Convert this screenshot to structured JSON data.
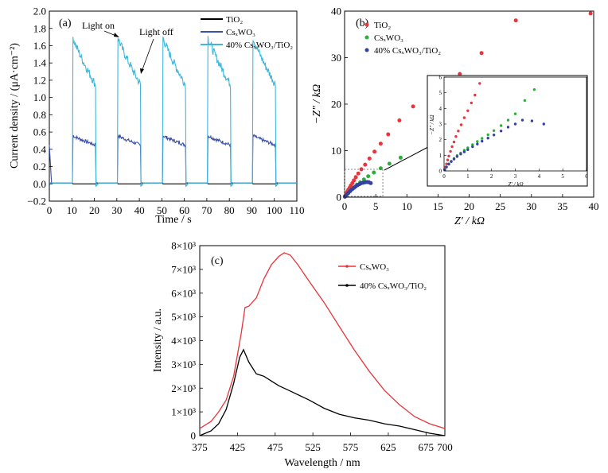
{
  "chart_data": [
    {
      "type": "line",
      "panel": "(a)",
      "xlabel": "Time / s",
      "ylabel": "Current density / (μA·cm⁻²)",
      "xlim": [
        0,
        110
      ],
      "ylim": [
        -0.2,
        2.0
      ],
      "xticks": [
        "0",
        "10",
        "20",
        "30",
        "40",
        "50",
        "60",
        "70",
        "80",
        "90",
        "100",
        "110"
      ],
      "yticks": [
        "−0.2",
        "0.0",
        "0.2",
        "0.4",
        "0.6",
        "0.8",
        "1.0",
        "1.2",
        "1.4",
        "1.6",
        "1.8",
        "2.0"
      ],
      "light_periods": [
        [
          10.5,
          20.5
        ],
        [
          30.5,
          40.5
        ],
        [
          50.5,
          60.5
        ],
        [
          70.5,
          80.5
        ],
        [
          90.5,
          100.5
        ]
      ],
      "series": [
        {
          "name": "TiO₂",
          "color": "#000000",
          "on_start": 0.0,
          "on_end": 0.0
        },
        {
          "name": "CsₓWO₃",
          "color": "#3b4fa6",
          "on_start": 0.56,
          "on_end": 0.45
        },
        {
          "name": "40% CsₓWO₃/TiO₂",
          "color": "#3fb7dc",
          "on_start": 1.7,
          "on_end": 1.15
        }
      ],
      "annotations": [
        {
          "text": "Light on",
          "x": 30.5,
          "y": 1.65
        },
        {
          "text": "Light off",
          "x": 40.5,
          "y": 1.2
        }
      ]
    },
    {
      "type": "scatter",
      "panel": "(b)",
      "xlabel": "Z′ / kΩ",
      "ylabel": "−Z″ / kΩ",
      "xlim": [
        0,
        40
      ],
      "ylim": [
        0,
        40
      ],
      "xticks": [
        "0",
        "5",
        "10",
        "15",
        "20",
        "25",
        "30",
        "35",
        "40"
      ],
      "yticks": [
        "0",
        "10",
        "20",
        "30",
        "40"
      ],
      "series": [
        {
          "name": "TiO₂",
          "color": "#e8343c",
          "x": [
            0.05,
            0.15,
            0.3,
            0.45,
            0.6,
            0.8,
            1.0,
            1.25,
            1.5,
            1.8,
            2.2,
            2.7,
            3.3,
            4.0,
            4.8,
            5.8,
            7.0,
            8.8,
            11.0,
            14.8,
            18.5,
            22.0,
            27.5,
            39.5
          ],
          "y": [
            0.1,
            0.4,
            0.8,
            1.2,
            1.6,
            2.0,
            2.5,
            3.0,
            3.6,
            4.3,
            5.1,
            6.0,
            7.0,
            8.3,
            9.8,
            11.5,
            13.5,
            16.5,
            19.5,
            23.5,
            26.5,
            31.0,
            38.0,
            39.5
          ]
        },
        {
          "name": "CsₓWO₃",
          "color": "#2fae3e",
          "x": [
            0.05,
            0.3,
            0.6,
            0.9,
            1.2,
            1.6,
            2.0,
            2.5,
            3.1,
            3.8,
            4.7,
            5.8,
            7.2,
            9.0
          ],
          "y": [
            0.1,
            0.5,
            0.9,
            1.3,
            1.7,
            2.2,
            2.7,
            3.2,
            3.8,
            4.5,
            5.3,
            6.2,
            7.2,
            8.5
          ]
        },
        {
          "name": "40% CsₓWO₃/TiO₂",
          "color": "#3540a0",
          "x": [
            0.05,
            0.3,
            0.6,
            0.9,
            1.2,
            1.5,
            1.8,
            2.1,
            2.4,
            2.7,
            3.0,
            3.3,
            3.6,
            3.9,
            4.2
          ],
          "y": [
            0.1,
            0.5,
            0.9,
            1.3,
            1.7,
            2.0,
            2.3,
            2.6,
            2.8,
            3.0,
            3.1,
            3.2,
            3.25,
            3.2,
            3.0
          ]
        }
      ],
      "inset": {
        "xlabel": "Z′ / kΩ",
        "ylabel": "−Z″ / kΩ",
        "xlim": [
          0,
          6
        ],
        "ylim": [
          0,
          6
        ],
        "xticks": [
          "0",
          "1",
          "2",
          "3",
          "4",
          "5",
          "6"
        ],
        "yticks": [
          "0",
          "1",
          "2",
          "3",
          "4",
          "5",
          "6"
        ],
        "series": [
          {
            "name": "TiO₂",
            "color": "#e8343c",
            "x": [
              0.02,
              0.06,
              0.1,
              0.15,
              0.2,
              0.27,
              0.34,
              0.42,
              0.5,
              0.6,
              0.72,
              0.85,
              1.0,
              1.15,
              1.3,
              1.5
            ],
            "y": [
              0.08,
              0.25,
              0.45,
              0.7,
              0.95,
              1.25,
              1.55,
              1.85,
              2.2,
              2.55,
              2.95,
              3.4,
              3.85,
              4.35,
              4.85,
              5.6
            ]
          },
          {
            "name": "CsₓWO₃",
            "color": "#2fae3e",
            "x": [
              0.03,
              0.1,
              0.2,
              0.3,
              0.42,
              0.55,
              0.7,
              0.85,
              1.0,
              1.2,
              1.4,
              1.6,
              1.85,
              2.1,
              2.4,
              2.7,
              3.0,
              3.4,
              3.8
            ],
            "y": [
              0.08,
              0.25,
              0.45,
              0.62,
              0.8,
              0.98,
              1.15,
              1.32,
              1.48,
              1.68,
              1.88,
              2.08,
              2.32,
              2.58,
              2.9,
              3.25,
              3.65,
              4.5,
              5.2
            ]
          },
          {
            "name": "40% CsₓWO₃/TiO₂",
            "color": "#3540a0",
            "x": [
              0.03,
              0.1,
              0.2,
              0.3,
              0.42,
              0.55,
              0.7,
              0.85,
              1.0,
              1.2,
              1.4,
              1.6,
              1.85,
              2.1,
              2.4,
              2.7,
              3.0,
              3.3,
              3.7,
              4.2
            ],
            "y": [
              0.08,
              0.25,
              0.43,
              0.6,
              0.76,
              0.92,
              1.08,
              1.22,
              1.36,
              1.55,
              1.72,
              1.9,
              2.1,
              2.3,
              2.55,
              2.8,
              3.0,
              3.25,
              3.2,
              3.0
            ]
          }
        ]
      }
    },
    {
      "type": "line",
      "panel": "(c)",
      "xlabel": "Wavelength / nm",
      "ylabel": "Intensity / a.u.",
      "xlim": [
        375,
        700
      ],
      "ylim": [
        0,
        8000
      ],
      "xticks": [
        "375",
        "425",
        "475",
        "525",
        "575",
        "625",
        "675",
        "700"
      ],
      "yticks": [
        "0",
        "1×10³",
        "2×10³",
        "3×10³",
        "4×10³",
        "5×10³",
        "6×10³",
        "7×10³",
        "8×10³"
      ],
      "series": [
        {
          "name": "CsₓWO₃",
          "color": "#e8343c",
          "x": [
            375,
            390,
            400,
            410,
            420,
            430,
            435,
            440,
            450,
            460,
            470,
            480,
            487,
            495,
            505,
            520,
            540,
            560,
            580,
            600,
            620,
            640,
            660,
            680,
            700
          ],
          "y": [
            300,
            600,
            1000,
            1500,
            2500,
            4300,
            5400,
            5450,
            5800,
            6600,
            7200,
            7550,
            7700,
            7600,
            7200,
            6500,
            5600,
            4600,
            3600,
            2700,
            1900,
            1300,
            800,
            500,
            300
          ]
        },
        {
          "name": "40% CsₓWO₃/TiO₂",
          "color": "#000000",
          "x": [
            375,
            390,
            400,
            410,
            420,
            428,
            433,
            440,
            450,
            460,
            470,
            480,
            490,
            500,
            520,
            540,
            560,
            580,
            600,
            620,
            640,
            660,
            680,
            700
          ],
          "y": [
            0,
            200,
            500,
            1100,
            2200,
            3300,
            3620,
            3100,
            2600,
            2500,
            2300,
            2100,
            1950,
            1800,
            1500,
            1150,
            900,
            750,
            650,
            500,
            400,
            250,
            100,
            0
          ]
        }
      ]
    }
  ]
}
